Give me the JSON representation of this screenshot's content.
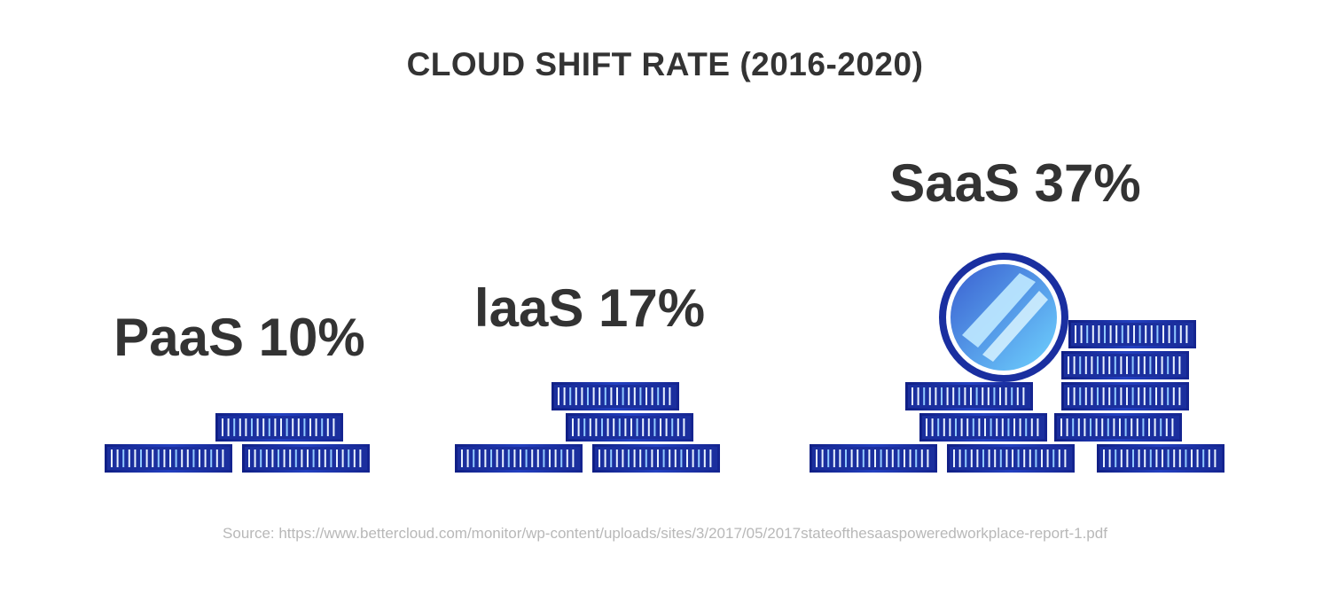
{
  "title": "CLOUD SHIFT RATE (2016-2020)",
  "source": "Source: https://www.bettercloud.com/monitor/wp-content/uploads/sites/3/2017/05/2017stateofthesaaspoweredworkplace-report-1.pdf",
  "colors": {
    "brick_dark": "#14248f",
    "brick_light": "#2f55d6",
    "coin_ring": "#1e3ab8",
    "coin_face": "#59b8f5",
    "text": "#333333"
  },
  "chart_data": {
    "type": "bar",
    "title": "CLOUD SHIFT RATE (2016-2020)",
    "categories": [
      "PaaS",
      "laaS",
      "SaaS"
    ],
    "values": [
      10,
      17,
      37
    ],
    "unit": "%",
    "labels": [
      "PaaS 10%",
      "laaS 17%",
      "SaaS 37%"
    ],
    "icon": "stacked-coins"
  }
}
